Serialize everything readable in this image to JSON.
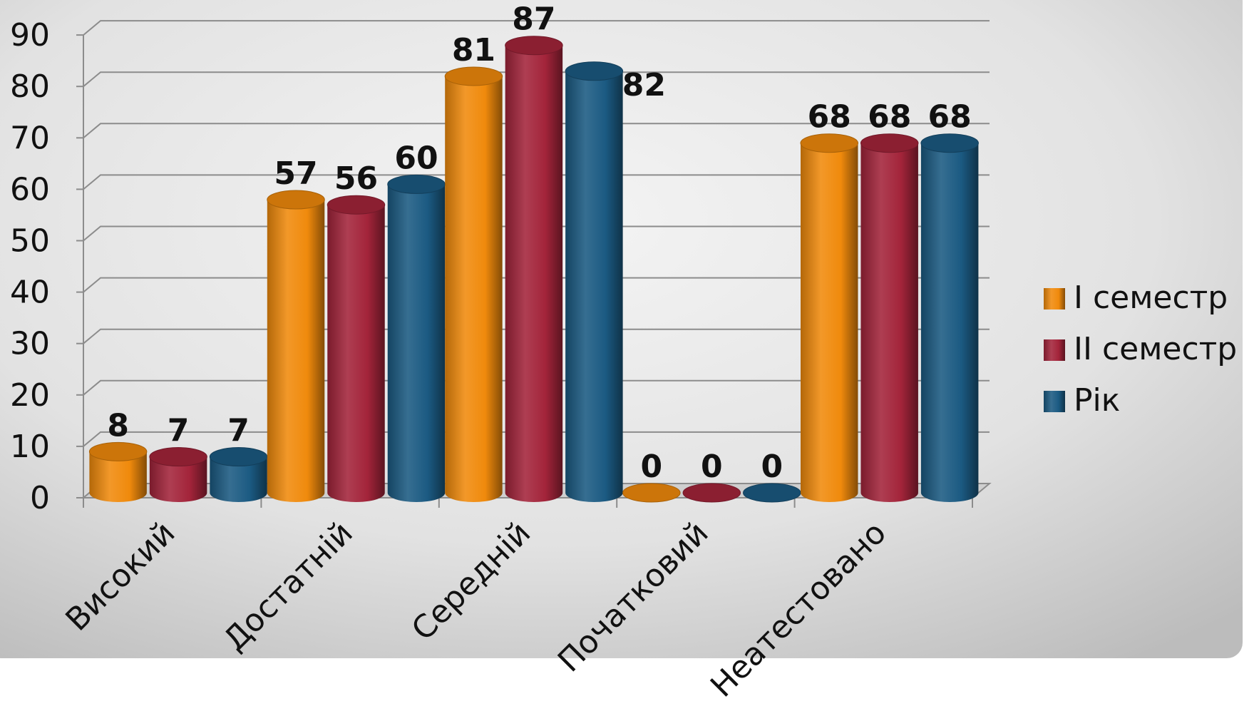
{
  "chart_data": {
    "type": "bar",
    "title": "",
    "xlabel": "",
    "ylabel": "",
    "ylim": [
      0,
      90
    ],
    "yticks": [
      "0",
      "10",
      "20",
      "30",
      "40",
      "50",
      "60",
      "70",
      "80",
      "90"
    ],
    "grid": true,
    "legend_position": "right",
    "categories": [
      "Високий",
      "Достатній",
      "Середній",
      "Початковий",
      "Неатестовано"
    ],
    "series": [
      {
        "name": "I семестр",
        "color": "#F08A0C",
        "values": [
          8,
          57,
          81,
          0,
          68
        ]
      },
      {
        "name": "II семестр",
        "color": "#A3243A",
        "values": [
          7,
          56,
          87,
          0,
          68
        ]
      },
      {
        "name": "Рік",
        "color": "#1B5A82",
        "values": [
          7,
          60,
          82,
          0,
          68
        ]
      }
    ]
  }
}
